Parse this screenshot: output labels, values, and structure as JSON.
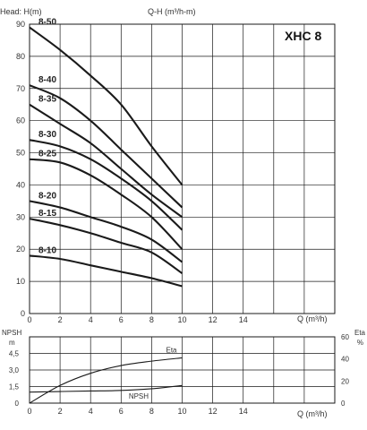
{
  "header": {
    "head_label": "Head: H(m)",
    "qh_label": "Q-H (m³/h-m)",
    "model": "XHC 8"
  },
  "chart_data": [
    {
      "type": "line",
      "title": "Q-H (m³/h-m)",
      "xlabel": "Q (m³/h)",
      "ylabel": "Head: H(m)",
      "xlim": [
        0,
        20
      ],
      "ylim": [
        0,
        90
      ],
      "xticks": [
        0,
        2,
        4,
        6,
        8,
        10,
        12,
        14
      ],
      "yticks": [
        0,
        10,
        20,
        30,
        40,
        50,
        60,
        70,
        80,
        90
      ],
      "grid": true,
      "series": [
        {
          "name": "8-50",
          "x": [
            0,
            2,
            4,
            6,
            8,
            10
          ],
          "y": [
            89,
            82,
            74,
            65,
            52,
            40
          ]
        },
        {
          "name": "8-40",
          "x": [
            0,
            2,
            4,
            6,
            8,
            10
          ],
          "y": [
            71,
            67,
            60,
            51,
            42,
            33
          ]
        },
        {
          "name": "8-35",
          "x": [
            0,
            2,
            4,
            6,
            8,
            10
          ],
          "y": [
            65,
            59,
            53,
            45,
            37,
            30
          ]
        },
        {
          "name": "8-30",
          "x": [
            0,
            2,
            4,
            6,
            8,
            10
          ],
          "y": [
            54,
            52,
            48,
            42,
            35,
            26
          ]
        },
        {
          "name": "8-25",
          "x": [
            0,
            2,
            4,
            6,
            8,
            10
          ],
          "y": [
            48,
            47,
            43,
            37,
            30,
            20
          ]
        },
        {
          "name": "8-20",
          "x": [
            0,
            2,
            4,
            6,
            8,
            10
          ],
          "y": [
            35,
            33,
            30,
            27,
            23,
            16
          ]
        },
        {
          "name": "8-15",
          "x": [
            0,
            2,
            4,
            6,
            8,
            10
          ],
          "y": [
            29.5,
            27.5,
            25,
            22,
            19,
            12.5
          ]
        },
        {
          "name": "8-10",
          "x": [
            0,
            2,
            4,
            6,
            8,
            10
          ],
          "y": [
            18,
            17,
            15,
            13,
            11,
            8.5
          ]
        }
      ]
    },
    {
      "type": "line",
      "xlabel": "Q (m³/h)",
      "ylabel": "NPSH m",
      "y2label": "Eta %",
      "xlim": [
        0,
        20
      ],
      "ylim": [
        0,
        6
      ],
      "y2lim": [
        0,
        60
      ],
      "xticks": [
        0,
        2,
        4,
        6,
        8,
        10,
        12,
        14
      ],
      "yticks": [
        0,
        1.5,
        3.0,
        4.5
      ],
      "ytick_labels": [
        "0",
        "1,5",
        "3,0",
        "4,5"
      ],
      "y2ticks": [
        0,
        20,
        40,
        60
      ],
      "grid": true,
      "series": [
        {
          "name": "Eta",
          "axis": "right",
          "x": [
            0,
            2,
            4,
            6,
            8,
            10
          ],
          "y": [
            0,
            16,
            27,
            34,
            38,
            41
          ]
        },
        {
          "name": "NPSH",
          "axis": "left",
          "x": [
            0,
            2,
            4,
            6,
            8,
            10
          ],
          "y": [
            1.0,
            1.05,
            1.1,
            1.15,
            1.3,
            1.6
          ]
        }
      ]
    }
  ]
}
